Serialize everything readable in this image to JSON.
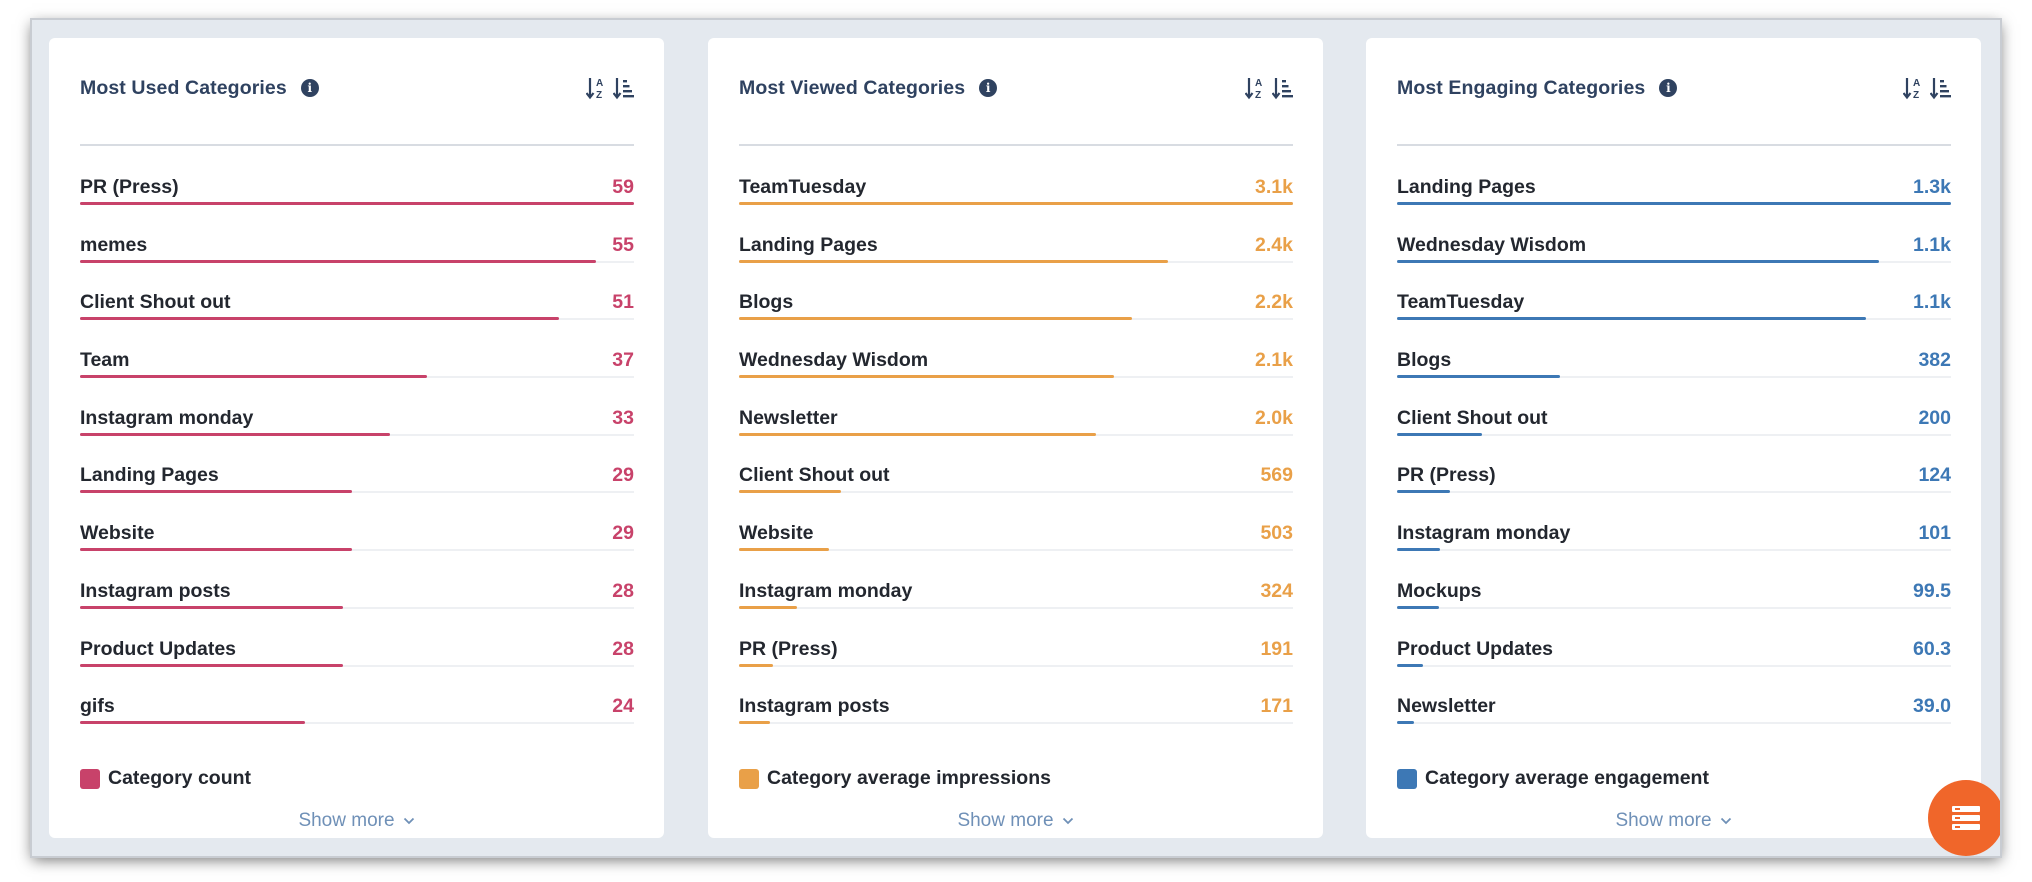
{
  "cards": [
    {
      "title": "Most Used Categories",
      "color": "#c8426a",
      "legend": "Category count",
      "show_more": "Show more",
      "chart_data": {
        "type": "bar",
        "orientation": "horizontal",
        "categories": [
          "PR (Press)",
          "memes",
          "Client Shout out",
          "Team",
          "Instagram monday",
          "Landing Pages",
          "Website",
          "Instagram posts",
          "Product Updates",
          "gifs"
        ],
        "value_labels": [
          "59",
          "55",
          "51",
          "37",
          "33",
          "29",
          "29",
          "28",
          "28",
          "24"
        ],
        "values": [
          59,
          55,
          51,
          37,
          33,
          29,
          29,
          28,
          28,
          24
        ],
        "series": [
          {
            "name": "Category count"
          }
        ],
        "legend_position": "bottom-left"
      }
    },
    {
      "title": "Most Viewed Categories",
      "color": "#e9a048",
      "legend": "Category average impressions",
      "show_more": "Show more",
      "chart_data": {
        "type": "bar",
        "orientation": "horizontal",
        "categories": [
          "TeamTuesday",
          "Landing Pages",
          "Blogs",
          "Wednesday Wisdom",
          "Newsletter",
          "Client Shout out",
          "Website",
          "Instagram monday",
          "PR (Press)",
          "Instagram posts"
        ],
        "value_labels": [
          "3.1k",
          "2.4k",
          "2.2k",
          "2.1k",
          "2.0k",
          "569",
          "503",
          "324",
          "191",
          "171"
        ],
        "values": [
          3100,
          2400,
          2200,
          2100,
          2000,
          569,
          503,
          324,
          191,
          171
        ],
        "series": [
          {
            "name": "Category average impressions"
          }
        ],
        "legend_position": "bottom-left"
      }
    },
    {
      "title": "Most Engaging Categories",
      "color": "#3d78b5",
      "legend": "Category average engagement",
      "show_more": "Show more",
      "chart_data": {
        "type": "bar",
        "orientation": "horizontal",
        "categories": [
          "Landing Pages",
          "Wednesday Wisdom",
          "TeamTuesday",
          "Blogs",
          "Client Shout out",
          "PR (Press)",
          "Instagram monday",
          "Mockups",
          "Product Updates",
          "Newsletter"
        ],
        "value_labels": [
          "1.3k",
          "1.1k",
          "1.1k",
          "382",
          "200",
          "124",
          "101",
          "99.5",
          "60.3",
          "39.0"
        ],
        "values": [
          1300,
          1130,
          1100,
          382,
          200,
          124,
          101,
          99.5,
          60.3,
          39.0
        ],
        "series": [
          {
            "name": "Category average engagement"
          }
        ],
        "legend_position": "bottom-left"
      }
    }
  ],
  "icons": {
    "info": "info-icon",
    "sort_alpha": "sort-alpha-icon",
    "sort_amount": "sort-amount-icon",
    "show_more": "chevron-down-icon",
    "fab": "list-icon"
  },
  "fab_color": "#f0662a"
}
